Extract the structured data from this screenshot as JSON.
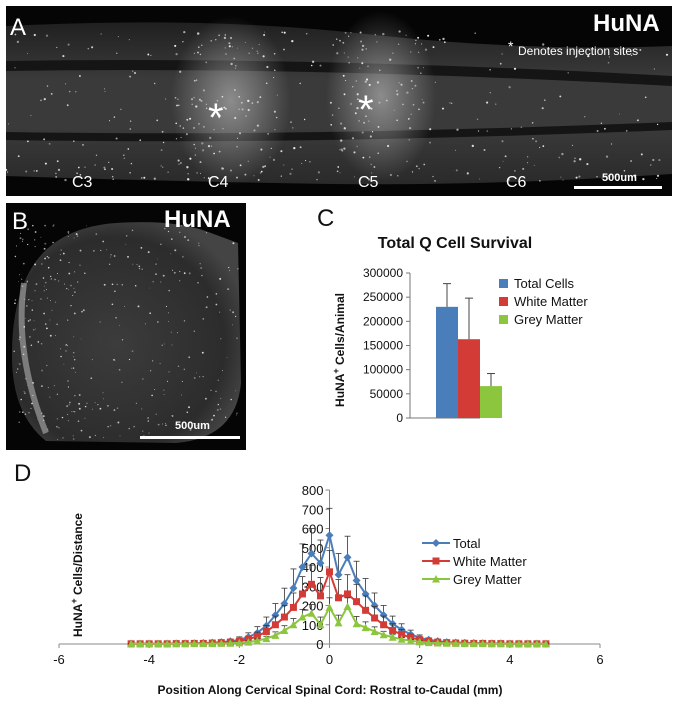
{
  "panel_a": {
    "letter": "A",
    "stain_label": "HuNA",
    "note_marker": "*",
    "note_text": "Denotes injection sites",
    "segments": [
      "C3",
      "C4",
      "C5",
      "C6"
    ],
    "injection_marker": "*",
    "scalebar_label": "500um"
  },
  "panel_b": {
    "letter": "B",
    "stain_label": "HuNA",
    "scalebar_label": "500um"
  },
  "chart_data": [
    {
      "panel": "C",
      "type": "bar",
      "title": "Total Q Cell Survival",
      "ylabel_pre": "HuNA",
      "ylabel_sup": "+",
      "ylabel_post": " Cells/Animal",
      "ylim": [
        0,
        300000
      ],
      "yticks": [
        "0",
        "50000",
        "100000",
        "150000",
        "200000",
        "250000",
        "300000"
      ],
      "legend_position": "right",
      "series": [
        {
          "name": "Total Cells",
          "value": 230000,
          "error": 48000,
          "color": "#4a7ebb"
        },
        {
          "name": "White Matter",
          "value": 163000,
          "error": 85000,
          "color": "#d33b36"
        },
        {
          "name": "Grey Matter",
          "value": 66000,
          "error": 26000,
          "color": "#8cc63f"
        }
      ]
    },
    {
      "panel": "D",
      "type": "line",
      "xlabel": "Position Along Cervical Spinal Cord: Rostral to-Caudal  (mm)",
      "ylabel_pre": "HuNA",
      "ylabel_sup": "+",
      "ylabel_post": " Cells/Distance",
      "xlim": [
        -6,
        6
      ],
      "ylim": [
        0,
        800
      ],
      "xticks": [
        "-6",
        "-4",
        "-2",
        "0",
        "2",
        "4",
        "6"
      ],
      "yticks": [
        "0",
        "100",
        "200",
        "300",
        "400",
        "500",
        "600",
        "700",
        "800"
      ],
      "legend_position": "right",
      "x": [
        -4.4,
        -4.2,
        -4.0,
        -3.8,
        -3.6,
        -3.4,
        -3.2,
        -3.0,
        -2.8,
        -2.6,
        -2.4,
        -2.2,
        -2.0,
        -1.8,
        -1.6,
        -1.4,
        -1.2,
        -1.0,
        -0.8,
        -0.6,
        -0.4,
        -0.2,
        0.0,
        0.2,
        0.4,
        0.6,
        0.8,
        1.0,
        1.2,
        1.4,
        1.6,
        1.8,
        2.0,
        2.2,
        2.4,
        2.6,
        2.8,
        3.0,
        3.2,
        3.4,
        3.6,
        3.8,
        4.0,
        4.2,
        4.4,
        4.6,
        4.8
      ],
      "series": [
        {
          "name": "Total",
          "color": "#4a7ebb",
          "marker": "diamond",
          "values": [
            2,
            2,
            2,
            2,
            2,
            3,
            3,
            4,
            5,
            7,
            10,
            14,
            22,
            36,
            58,
            95,
            150,
            210,
            290,
            400,
            470,
            420,
            565,
            360,
            450,
            330,
            260,
            200,
            150,
            105,
            75,
            50,
            32,
            22,
            15,
            10,
            8,
            6,
            5,
            4,
            3,
            3,
            2,
            2,
            2,
            2,
            2
          ],
          "errors": [
            2,
            2,
            2,
            2,
            2,
            2,
            3,
            3,
            4,
            5,
            7,
            10,
            15,
            22,
            32,
            45,
            60,
            80,
            100,
            120,
            130,
            120,
            140,
            110,
            110,
            100,
            80,
            65,
            50,
            40,
            30,
            22,
            15,
            10,
            8,
            6,
            5,
            4,
            3,
            3,
            3,
            2,
            2,
            2,
            2,
            2,
            2
          ]
        },
        {
          "name": "White Matter",
          "color": "#d33b36",
          "marker": "square",
          "values": [
            1,
            1,
            1,
            1,
            1,
            2,
            2,
            3,
            3,
            5,
            7,
            10,
            15,
            25,
            40,
            65,
            100,
            140,
            190,
            260,
            310,
            250,
            375,
            240,
            260,
            220,
            175,
            135,
            100,
            70,
            50,
            33,
            22,
            15,
            10,
            7,
            5,
            4,
            3,
            3,
            2,
            2,
            1,
            1,
            1,
            1,
            1
          ],
          "errors": [
            1,
            1,
            1,
            1,
            1,
            2,
            2,
            2,
            3,
            4,
            5,
            7,
            10,
            15,
            22,
            32,
            45,
            60,
            75,
            90,
            100,
            95,
            110,
            95,
            100,
            90,
            75,
            60,
            45,
            35,
            25,
            18,
            12,
            8,
            6,
            4,
            3,
            3,
            2,
            2,
            2,
            1,
            1,
            1,
            1,
            1,
            1
          ]
        },
        {
          "name": "Grey Matter",
          "color": "#8cc63f",
          "marker": "triangle",
          "values": [
            1,
            1,
            1,
            1,
            1,
            1,
            1,
            2,
            2,
            2,
            3,
            4,
            6,
            10,
            17,
            28,
            45,
            70,
            100,
            140,
            160,
            100,
            190,
            110,
            195,
            105,
            85,
            65,
            48,
            35,
            25,
            17,
            11,
            7,
            5,
            4,
            3,
            2,
            2,
            2,
            1,
            1,
            1,
            1,
            1,
            1,
            1
          ],
          "errors": [
            1,
            1,
            1,
            1,
            1,
            1,
            1,
            1,
            2,
            2,
            2,
            3,
            4,
            6,
            9,
            12,
            18,
            25,
            32,
            40,
            45,
            40,
            50,
            40,
            45,
            38,
            30,
            24,
            18,
            13,
            9,
            7,
            5,
            4,
            3,
            2,
            2,
            2,
            1,
            1,
            1,
            1,
            1,
            1,
            1,
            1,
            1
          ]
        }
      ]
    }
  ]
}
